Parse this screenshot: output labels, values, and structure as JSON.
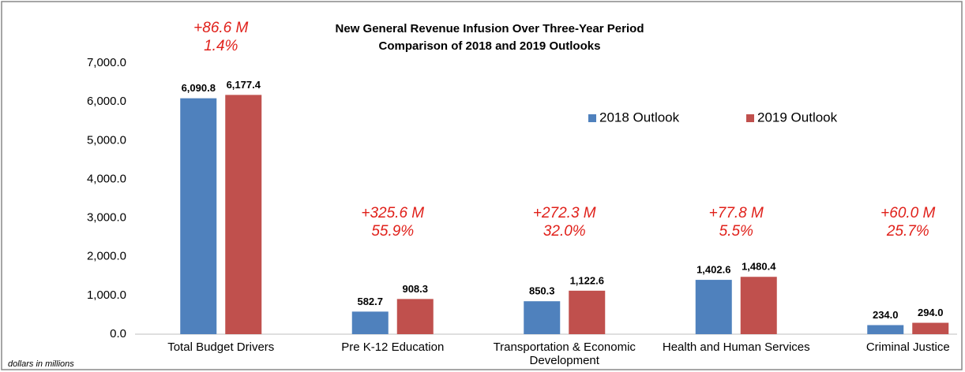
{
  "chart_data": {
    "type": "bar",
    "title": "New General Revenue Infusion Over Three-Year Period",
    "subtitle": "Comparison of 2018 and 2019 Outlooks",
    "categories": [
      "Total Budget Drivers",
      "Pre K-12 Education",
      "Transportation & Economic Development",
      "Health and Human Services",
      "Criminal Justice"
    ],
    "series": [
      {
        "name": "2018 Outlook",
        "color": "#4f81bd",
        "values": [
          6090.8,
          582.7,
          850.3,
          1402.6,
          234.0
        ],
        "value_labels": [
          "6,090.8",
          "582.7",
          "850.3",
          "1,402.6",
          "234.0"
        ]
      },
      {
        "name": "2019 Outlook",
        "color": "#c0504d",
        "values": [
          6177.4,
          908.3,
          1122.6,
          1480.4,
          294.0
        ],
        "value_labels": [
          "6,177.4",
          "908.3",
          "1,122.6",
          "1,480.4",
          "294.0"
        ]
      }
    ],
    "annotations": [
      [
        "+86.6 M",
        "1.4%"
      ],
      [
        "+325.6 M",
        "55.9%"
      ],
      [
        "+272.3 M",
        "32.0%"
      ],
      [
        "+77.8 M",
        "5.5%"
      ],
      [
        "+60.0 M",
        "25.7%"
      ]
    ],
    "ylim": [
      0,
      7000
    ],
    "yticks": [
      {
        "value": 0,
        "label": "0.0"
      },
      {
        "value": 1000,
        "label": "1,000.0"
      },
      {
        "value": 2000,
        "label": "2,000.0"
      },
      {
        "value": 3000,
        "label": "3,000.0"
      },
      {
        "value": 4000,
        "label": "4,000.0"
      },
      {
        "value": 5000,
        "label": "5,000.0"
      },
      {
        "value": 6000,
        "label": "6,000.0"
      },
      {
        "value": 7000,
        "label": "7,000.0"
      }
    ],
    "grid": false,
    "legend": "upper right",
    "footnote": "dollars in millions"
  }
}
